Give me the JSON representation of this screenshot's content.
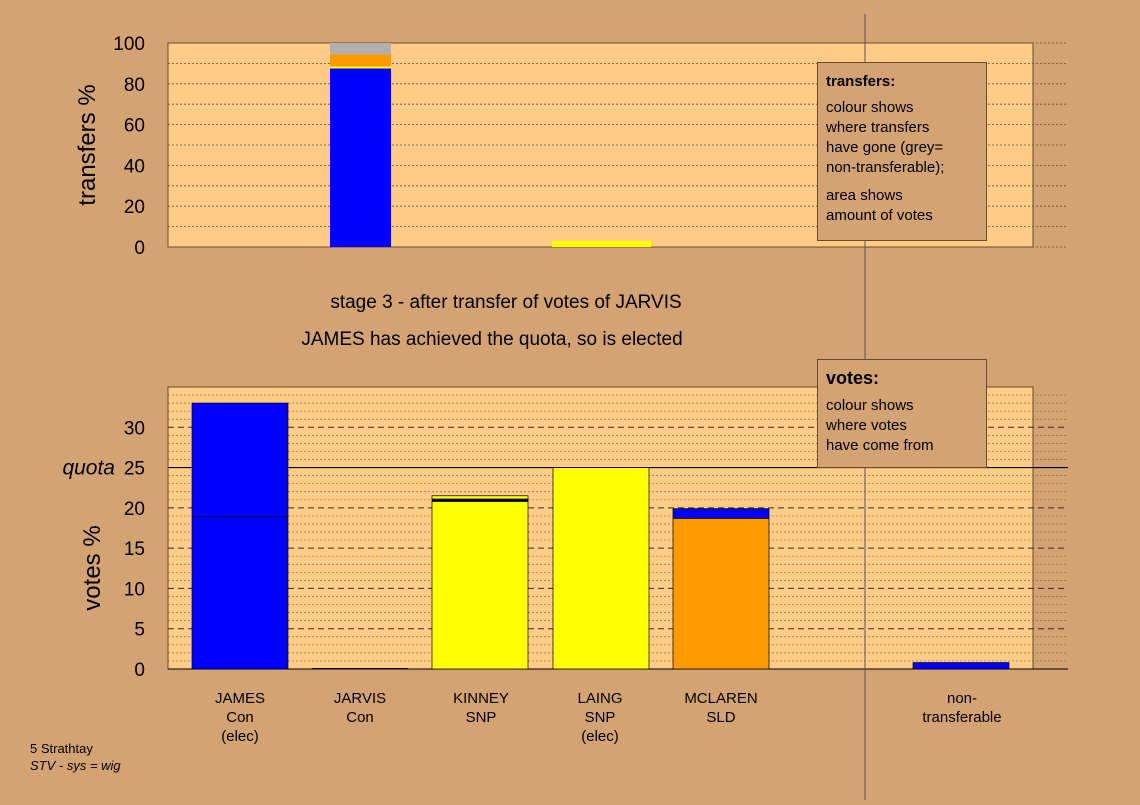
{
  "chart_data": [
    {
      "type": "bar",
      "stacked": true,
      "ylabel": "transfers %",
      "ylim": [
        0,
        100
      ],
      "yticks": [
        0,
        20,
        40,
        60,
        80,
        100
      ],
      "grid": true,
      "categories": [
        "JAMES",
        "JARVIS",
        "KINNEY",
        "LAING",
        "MCLAREN",
        "non-transferable"
      ],
      "bars": [
        {
          "category": "JAMES",
          "segments": [
            {
              "value": 87.5,
              "color": "#0000ff"
            },
            {
              "value": 1.0,
              "color": "#ffff00"
            },
            {
              "value": 6.0,
              "color": "#ff9900"
            },
            {
              "value": 5.5,
              "color": "#b0b0b0"
            }
          ]
        },
        {
          "category": "KINNEY",
          "segments": [
            {
              "value": 3.0,
              "color": "#ffff00"
            }
          ]
        }
      ]
    },
    {
      "type": "bar",
      "stacked": true,
      "ylabel": "votes %",
      "ylim": [
        0,
        35
      ],
      "yticks": [
        0,
        5,
        10,
        15,
        20,
        25,
        30
      ],
      "quota": {
        "value": 25,
        "label": "quota"
      },
      "grid": true,
      "categories": [
        {
          "lines": [
            "JAMES",
            "Con",
            "(elec)"
          ]
        },
        {
          "lines": [
            "JARVIS",
            "Con"
          ]
        },
        {
          "lines": [
            "KINNEY",
            "SNP"
          ]
        },
        {
          "lines": [
            "LAING",
            "SNP",
            "(elec)"
          ]
        },
        {
          "lines": [
            "MCLAREN",
            "SLD"
          ]
        },
        {
          "lines": [
            "non-",
            "transferable"
          ]
        }
      ],
      "bars": [
        {
          "category": "JAMES",
          "segments": [
            {
              "value": 18.9,
              "color": "#0000ff"
            },
            {
              "value": 14.1,
              "color": "#0000ff"
            }
          ]
        },
        {
          "category": "JARVIS",
          "segments": []
        },
        {
          "category": "KINNEY",
          "segments": [
            {
              "value": 20.8,
              "color": "#ffff00"
            },
            {
              "value": 0.3,
              "color": "#000000"
            },
            {
              "value": 0.4,
              "color": "#ffff00"
            }
          ]
        },
        {
          "category": "LAING",
          "segments": [
            {
              "value": 25.0,
              "color": "#ffff00"
            }
          ]
        },
        {
          "category": "MCLAREN",
          "segments": [
            {
              "value": 18.7,
              "color": "#ff9900"
            },
            {
              "value": 1.2,
              "color": "#0000ff"
            }
          ]
        },
        {
          "category": "non-transferable",
          "segments": [
            {
              "value": 0.8,
              "color": "#0000ff"
            }
          ]
        }
      ]
    }
  ],
  "stage_text": "stage 3 - after transfer of votes of JARVIS",
  "elected_text": "JAMES has achieved the quota, so is elected",
  "legend_transfers": {
    "title": "transfers:",
    "line1": "colour shows",
    "line2": "where transfers",
    "line3": "have gone (grey=",
    "line4": "non-transferable);",
    "line5": "area shows",
    "line6": "amount of votes"
  },
  "legend_votes": {
    "title": "votes:",
    "line1": "colour shows",
    "line2": "where votes",
    "line3": "have come from"
  },
  "footer": {
    "constituency": "5 Strathtay",
    "system": "STV - sys = wig"
  },
  "colors": {
    "background": "#d4a373",
    "plot_area": "#ffcc88",
    "con": "#0000ff",
    "snp": "#ffff00",
    "sld": "#ff9900",
    "non_transferable": "#b0b0b0"
  }
}
